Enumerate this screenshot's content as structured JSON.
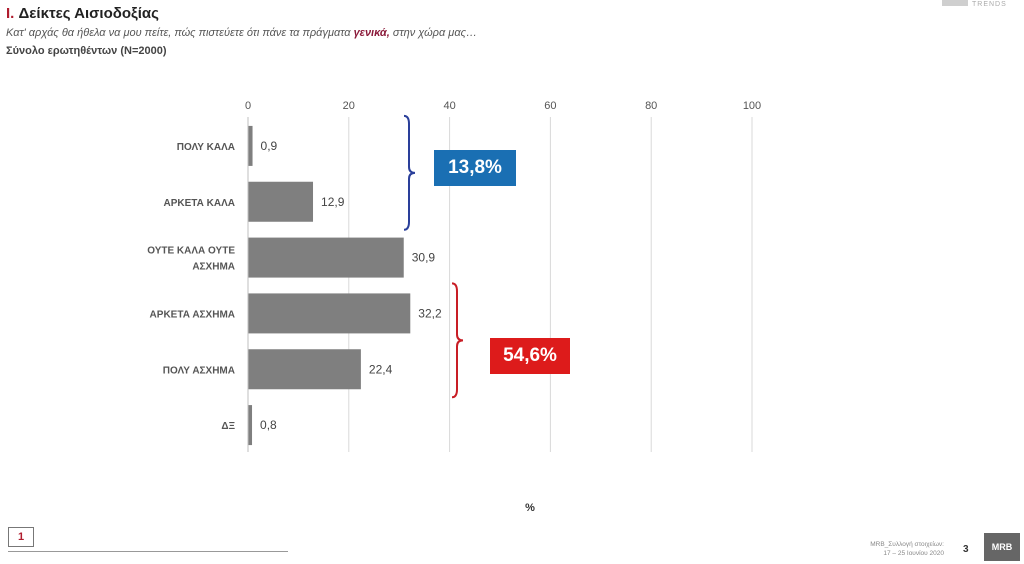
{
  "header": {
    "title_num": "I.",
    "title_text": "Δείκτες Αισιοδοξίας",
    "subtitle_pre": "Κατ' αρχάς θα ήθελα να μου πείτε, πώς πιστεύετε ότι πάνε τα πράγματα ",
    "subtitle_em": "γενικά,",
    "subtitle_post": " στην χώρα μας…",
    "sample": "Σύνολο ερωτηθέντων (N=2000)",
    "logo_top_text": "TRENDS"
  },
  "chart_data": {
    "type": "bar",
    "orientation": "horizontal",
    "categories": [
      "ΠΟΛΥ ΚΑΛΑ",
      "ΑΡΚΕΤΑ ΚΑΛΑ",
      "ΟΥΤΕ ΚΑΛΑ ΟΥΤΕ ΑΣΧΗΜΑ",
      "ΑΡΚΕΤΑ ΑΣΧΗΜΑ",
      "ΠΟΛΥ ΑΣΧΗΜΑ",
      "ΔΞ"
    ],
    "category_lines": [
      [
        "ΠΟΛΥ ΚΑΛΑ"
      ],
      [
        "ΑΡΚΕΤΑ ΚΑΛΑ"
      ],
      [
        "ΟΥΤΕ ΚΑΛΑ ΟΥΤΕ",
        "ΑΣΧΗΜΑ"
      ],
      [
        "ΑΡΚΕΤΑ ΑΣΧΗΜΑ"
      ],
      [
        "ΠΟΛΥ ΑΣΧΗΜΑ"
      ],
      [
        "ΔΞ"
      ]
    ],
    "values": [
      0.9,
      12.9,
      30.9,
      32.2,
      22.4,
      0.8
    ],
    "value_labels": [
      "0,9",
      "12,9",
      "30,9",
      "32,2",
      "22,4",
      "0,8"
    ],
    "xlim": [
      0,
      100
    ],
    "xticks": [
      0,
      20,
      40,
      60,
      80,
      100
    ],
    "xlabel": "%",
    "grid": true,
    "bar_color": "#7f7f7f",
    "annotations": [
      {
        "label": "13,8%",
        "color": "#1a6fb3",
        "from_category": 0,
        "to_category": 1
      },
      {
        "label": "54,6%",
        "color": "#dd1b1b",
        "from_category": 3,
        "to_category": 4
      }
    ]
  },
  "footer": {
    "page_box": "1",
    "source_line1": "MRB_Συλλογή στοιχείων:",
    "source_line2": "17 – 25 Ιουνίου 2020",
    "page_number": "3",
    "logo_text": "MRB"
  }
}
